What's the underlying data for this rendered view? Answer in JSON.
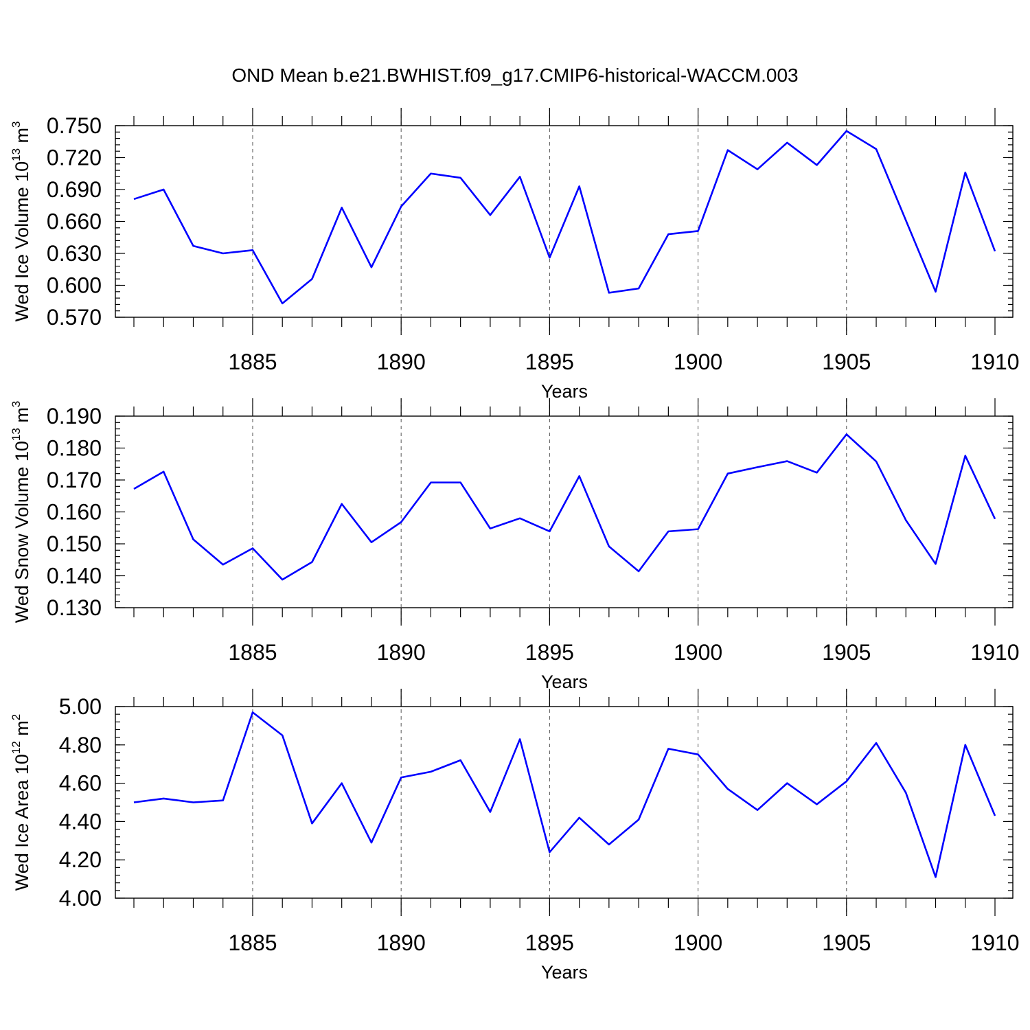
{
  "title": "OND Mean b.e21.BWHIST.f09_g17.CMIP6-historical-WACCM.003",
  "colors": {
    "line": "#0000ff",
    "axis": "#000000",
    "grid": "#555555"
  },
  "chart_data": [
    {
      "type": "line",
      "id": "ice-volume",
      "ylabel": {
        "text": "Wed Ice Volume 10",
        "exp": "13",
        "unit": " m",
        "unit_exp": "3"
      },
      "xlabel": "Years",
      "xlim": [
        1881,
        1910
      ],
      "ylim": [
        0.57,
        0.75
      ],
      "y_major_ticks": [
        0.57,
        0.6,
        0.63,
        0.66,
        0.69,
        0.72,
        0.75
      ],
      "y_tick_labels": [
        "0.570",
        "0.600",
        "0.630",
        "0.660",
        "0.690",
        "0.720",
        "0.750"
      ],
      "y_minor_step": 0.006,
      "x_major_ticks": [
        1885,
        1890,
        1895,
        1900,
        1905,
        1910
      ],
      "x_tick_labels": [
        "1885",
        "1890",
        "1895",
        "1900",
        "1905",
        "1910"
      ],
      "x": [
        1881,
        1882,
        1883,
        1884,
        1885,
        1886,
        1887,
        1888,
        1889,
        1890,
        1891,
        1892,
        1893,
        1894,
        1895,
        1896,
        1897,
        1898,
        1899,
        1900,
        1901,
        1902,
        1903,
        1904,
        1905,
        1906,
        1907,
        1908,
        1909,
        1910
      ],
      "values": [
        0.681,
        0.69,
        0.637,
        0.63,
        0.633,
        0.583,
        0.606,
        0.673,
        0.617,
        0.674,
        0.705,
        0.701,
        0.666,
        0.702,
        0.626,
        0.693,
        0.593,
        0.597,
        0.648,
        0.651,
        0.727,
        0.709,
        0.734,
        0.713,
        0.745,
        0.728,
        0.661,
        0.594,
        0.706,
        0.632
      ]
    },
    {
      "type": "line",
      "id": "snow-volume",
      "ylabel": {
        "text": "Wed Snow Volume 10",
        "exp": "13",
        "unit": " m",
        "unit_exp": "3"
      },
      "xlabel": "Years",
      "xlim": [
        1881,
        1910
      ],
      "ylim": [
        0.13,
        0.19
      ],
      "y_major_ticks": [
        0.13,
        0.14,
        0.15,
        0.16,
        0.17,
        0.18,
        0.19
      ],
      "y_tick_labels": [
        "0.130",
        "0.140",
        "0.150",
        "0.160",
        "0.170",
        "0.180",
        "0.190"
      ],
      "y_minor_step": 0.002,
      "x_major_ticks": [
        1885,
        1890,
        1895,
        1900,
        1905,
        1910
      ],
      "x_tick_labels": [
        "1885",
        "1890",
        "1895",
        "1900",
        "1905",
        "1910"
      ],
      "x": [
        1881,
        1882,
        1883,
        1884,
        1885,
        1886,
        1887,
        1888,
        1889,
        1890,
        1891,
        1892,
        1893,
        1894,
        1895,
        1896,
        1897,
        1898,
        1899,
        1900,
        1901,
        1902,
        1903,
        1904,
        1905,
        1906,
        1907,
        1908,
        1909,
        1910
      ],
      "values": [
        0.1672,
        0.1726,
        0.1514,
        0.1435,
        0.1486,
        0.1388,
        0.1443,
        0.1625,
        0.1505,
        0.1568,
        0.1692,
        0.1692,
        0.1548,
        0.158,
        0.1539,
        0.1712,
        0.1492,
        0.1414,
        0.1539,
        0.1546,
        0.172,
        0.174,
        0.1759,
        0.1723,
        0.1843,
        0.1758,
        0.1574,
        0.1437,
        0.1776,
        0.1578
      ]
    },
    {
      "type": "line",
      "id": "ice-area",
      "ylabel": {
        "text": "Wed Ice Area 10",
        "exp": "12",
        "unit": " m",
        "unit_exp": "2"
      },
      "xlabel": "Years",
      "xlim": [
        1881,
        1910
      ],
      "ylim": [
        4.0,
        5.0
      ],
      "y_major_ticks": [
        4.0,
        4.2,
        4.4,
        4.6,
        4.8,
        5.0
      ],
      "y_tick_labels": [
        "4.00",
        "4.20",
        "4.40",
        "4.60",
        "4.80",
        "5.00"
      ],
      "y_minor_step": 0.04,
      "x_major_ticks": [
        1885,
        1890,
        1895,
        1900,
        1905,
        1910
      ],
      "x_tick_labels": [
        "1885",
        "1890",
        "1895",
        "1900",
        "1905",
        "1910"
      ],
      "x": [
        1881,
        1882,
        1883,
        1884,
        1885,
        1886,
        1887,
        1888,
        1889,
        1890,
        1891,
        1892,
        1893,
        1894,
        1895,
        1896,
        1897,
        1898,
        1899,
        1900,
        1901,
        1902,
        1903,
        1904,
        1905,
        1906,
        1907,
        1908,
        1909,
        1910
      ],
      "values": [
        4.5,
        4.52,
        4.5,
        4.51,
        4.97,
        4.85,
        4.39,
        4.6,
        4.29,
        4.63,
        4.66,
        4.72,
        4.45,
        4.83,
        4.24,
        4.42,
        4.28,
        4.41,
        4.78,
        4.75,
        4.57,
        4.46,
        4.6,
        4.49,
        4.61,
        4.81,
        4.55,
        4.11,
        4.8,
        4.43
      ]
    }
  ]
}
